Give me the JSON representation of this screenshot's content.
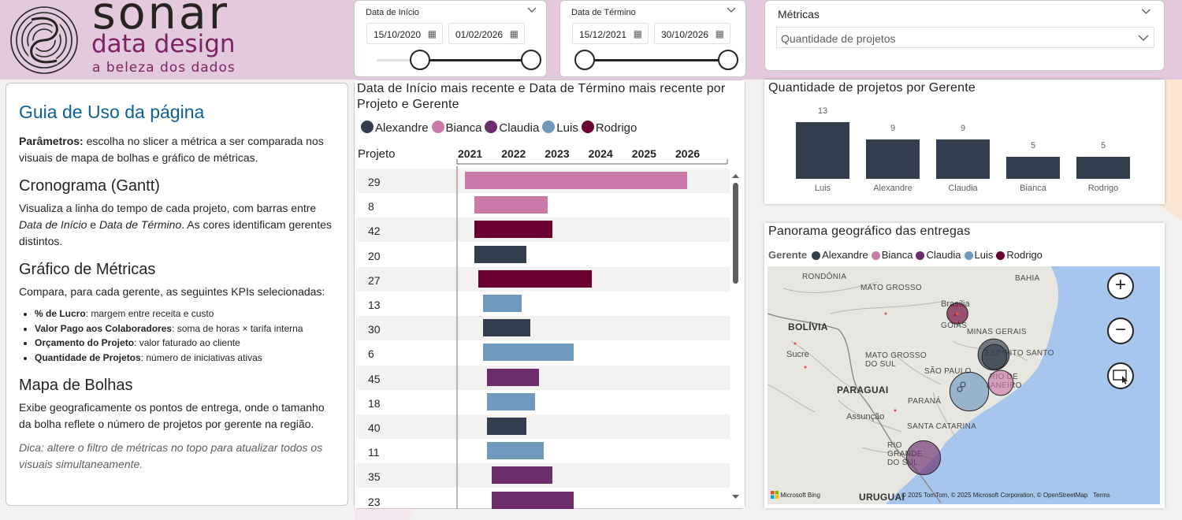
{
  "logo": {
    "name": "sonar",
    "sub": "data design",
    "tagline": "a beleza dos dados"
  },
  "slicers": {
    "start": {
      "title": "Data de Início",
      "from": "15/10/2020",
      "to": "01/02/2026"
    },
    "end": {
      "title": "Data de Término",
      "from": "15/12/2021",
      "to": "30/10/2026"
    },
    "metric": {
      "title": "Métricas",
      "selected": "Quantidade de projetos"
    }
  },
  "guide": {
    "title": "Guia de Uso da página",
    "params_bold": "Parâmetros:",
    "params_text": " escolha no slicer a métrica a ser comparada nos visuais de mapa de bolhas e gráfico de métricas.",
    "gantt_h": "Cronograma (Gantt)",
    "gantt_p1": "Visualiza a linha do tempo de cada projeto, com barras entre ",
    "gantt_i1": "Data de Início",
    "gantt_p2": " e ",
    "gantt_i2": "Data de Término",
    "gantt_p3": ". As cores identificam gerentes distintos.",
    "metrics_h": "Gráfico de Métricas",
    "metrics_p": "Compara, para cada gerente, as seguintes KPIs selecionadas:",
    "kpis": [
      {
        "name": "% de Lucro",
        "desc": ": margem entre receita e custo"
      },
      {
        "name": "Valor Pago aos Colaboradores",
        "desc": ": soma de horas × tarifa interna"
      },
      {
        "name": "Orçamento do Projeto",
        "desc": ": valor faturado ao cliente"
      },
      {
        "name": "Quantidade de Projetos",
        "desc": ": número de iniciativas ativas"
      }
    ],
    "bubble_h": "Mapa de Bolhas",
    "bubble_p": "Exibe geograficamente os pontos de entrega, onde o tamanho da bolha reflete o número de projetos por gerente na região.",
    "tip": "Dica: altere o filtro de métricas no topo para atualizar todos os visuais simultaneamente."
  },
  "managers": [
    {
      "name": "Alexandre",
      "color": "#323e4e"
    },
    {
      "name": "Bianca",
      "color": "#c97aa8"
    },
    {
      "name": "Claudia",
      "color": "#6b2e6b"
    },
    {
      "name": "Luis",
      "color": "#6f99bd"
    },
    {
      "name": "Rodrigo",
      "color": "#6b0033"
    }
  ],
  "gantt": {
    "title": "Data de Início mais recente e Data de Término mais recente por Projeto e Gerente",
    "row_header": "Projeto",
    "years": [
      "2021",
      "2022",
      "2023",
      "2024",
      "2025",
      "2026"
    ],
    "rows": [
      {
        "project": "29",
        "manager": "Bianca",
        "start": 2020.9,
        "end": 2026.0
      },
      {
        "project": "8",
        "manager": "Bianca",
        "start": 2021.1,
        "end": 2022.8
      },
      {
        "project": "42",
        "manager": "Rodrigo",
        "start": 2021.1,
        "end": 2022.9
      },
      {
        "project": "20",
        "manager": "Alexandre",
        "start": 2021.1,
        "end": 2022.3
      },
      {
        "project": "27",
        "manager": "Rodrigo",
        "start": 2021.2,
        "end": 2023.8
      },
      {
        "project": "13",
        "manager": "Luis",
        "start": 2021.3,
        "end": 2022.2
      },
      {
        "project": "30",
        "manager": "Alexandre",
        "start": 2021.3,
        "end": 2022.4
      },
      {
        "project": "6",
        "manager": "Luis",
        "start": 2021.3,
        "end": 2023.4
      },
      {
        "project": "45",
        "manager": "Claudia",
        "start": 2021.4,
        "end": 2022.6
      },
      {
        "project": "18",
        "manager": "Luis",
        "start": 2021.4,
        "end": 2022.5
      },
      {
        "project": "40",
        "manager": "Alexandre",
        "start": 2021.4,
        "end": 2022.3
      },
      {
        "project": "11",
        "manager": "Luis",
        "start": 2021.4,
        "end": 2022.7
      },
      {
        "project": "35",
        "manager": "Claudia",
        "start": 2021.5,
        "end": 2022.9
      },
      {
        "project": "23",
        "manager": "Claudia",
        "start": 2021.5,
        "end": 2023.4
      }
    ]
  },
  "chart_data": {
    "type": "bar",
    "title": "Quantidade de projetos por Gerente",
    "categories": [
      "Luis",
      "Alexandre",
      "Claudia",
      "Bianca",
      "Rodrigo"
    ],
    "values": [
      13,
      9,
      9,
      5,
      5
    ],
    "color": "#323e4e"
  },
  "map": {
    "title": "Panorama geográfico das entregas",
    "legend_label": "Gerente",
    "places": [
      "RONDÔNIA",
      "MATO GROSSO",
      "BAHIA",
      "BOLÍVIA",
      "Brasília",
      "GOIÁS",
      "MINAS GERAIS",
      "Sucre",
      "MATO GROSSO DO SUL",
      "ESPÍRITO SANTO",
      "SÃO PAULO",
      "RIO DE JANEIRO",
      "PARAGUAI",
      "PARANÁ",
      "Assunção",
      "SANTA CATARINA",
      "RIO GRANDE DO SUL",
      "URUGUAI"
    ],
    "bubbles": [
      {
        "place": "Brasília",
        "manager": "Rodrigo",
        "projects": 2
      },
      {
        "place": "Minas Gerais",
        "manager": "Alexandre",
        "projects": 5
      },
      {
        "place": "Minas Gerais",
        "manager": "Alexandre",
        "projects": 3
      },
      {
        "place": "Rio de Janeiro",
        "manager": "Bianca",
        "projects": 3
      },
      {
        "place": "São Paulo",
        "manager": "Luis",
        "projects": 8
      },
      {
        "place": "Rio Grande do Sul",
        "manager": "Claudia",
        "projects": 6
      }
    ],
    "bing": "Microsoft Bing",
    "copyright": "© 2025 TomTom, © 2025 Microsoft Corporation, ",
    "osm": "© OpenStreetMap",
    "terms": "Terms",
    "zoom_in": "+",
    "zoom_out": "−"
  }
}
